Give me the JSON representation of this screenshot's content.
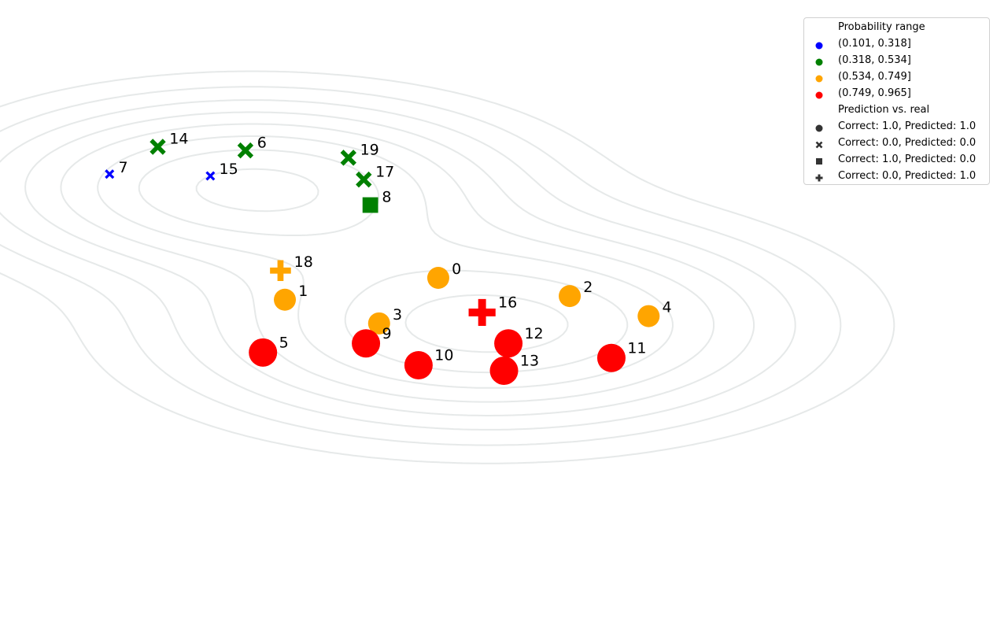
{
  "chart_data": {
    "type": "scatter",
    "title": "",
    "xlabel": "",
    "ylabel": "",
    "axes_visible": false,
    "xlim": [
      -2.0,
      2.6
    ],
    "ylim": [
      -1.6,
      1.6
    ],
    "background": "density contour lines (light gray)",
    "contour_color": "#e6e9e9",
    "points": [
      {
        "label": "0",
        "x": 0.0,
        "y": 0.16,
        "prob_range": "(0.534, 0.749]",
        "shape": "circle"
      },
      {
        "label": "1",
        "x": -0.7,
        "y": 0.04,
        "prob_range": "(0.534, 0.749]",
        "shape": "circle"
      },
      {
        "label": "2",
        "x": 0.6,
        "y": 0.06,
        "prob_range": "(0.534, 0.749]",
        "shape": "circle"
      },
      {
        "label": "3",
        "x": -0.27,
        "y": -0.09,
        "prob_range": "(0.534, 0.749]",
        "shape": "circle"
      },
      {
        "label": "4",
        "x": 0.96,
        "y": -0.05,
        "prob_range": "(0.534, 0.749]",
        "shape": "circle"
      },
      {
        "label": "5",
        "x": -0.8,
        "y": -0.25,
        "prob_range": "(0.749, 0.965]",
        "shape": "circle"
      },
      {
        "label": "6",
        "x": -0.88,
        "y": 0.86,
        "prob_range": "(0.318, 0.534]",
        "shape": "x"
      },
      {
        "label": "7",
        "x": -1.5,
        "y": 0.73,
        "prob_range": "(0.101, 0.318]",
        "shape": "x"
      },
      {
        "label": "8",
        "x": -0.31,
        "y": 0.56,
        "prob_range": "(0.318, 0.534]",
        "shape": "square"
      },
      {
        "label": "9",
        "x": -0.33,
        "y": -0.2,
        "prob_range": "(0.749, 0.965]",
        "shape": "circle"
      },
      {
        "label": "10",
        "x": -0.09,
        "y": -0.32,
        "prob_range": "(0.749, 0.965]",
        "shape": "circle"
      },
      {
        "label": "11",
        "x": 0.79,
        "y": -0.28,
        "prob_range": "(0.749, 0.965]",
        "shape": "circle"
      },
      {
        "label": "12",
        "x": 0.32,
        "y": -0.2,
        "prob_range": "(0.749, 0.965]",
        "shape": "circle"
      },
      {
        "label": "13",
        "x": 0.3,
        "y": -0.35,
        "prob_range": "(0.749, 0.965]",
        "shape": "circle"
      },
      {
        "label": "14",
        "x": -1.28,
        "y": 0.88,
        "prob_range": "(0.318, 0.534]",
        "shape": "x"
      },
      {
        "label": "15",
        "x": -1.04,
        "y": 0.72,
        "prob_range": "(0.101, 0.318]",
        "shape": "x"
      },
      {
        "label": "16",
        "x": 0.2,
        "y": -0.03,
        "prob_range": "(0.749, 0.965]",
        "shape": "plus"
      },
      {
        "label": "17",
        "x": -0.34,
        "y": 0.7,
        "prob_range": "(0.318, 0.534]",
        "shape": "x"
      },
      {
        "label": "18",
        "x": -0.72,
        "y": 0.2,
        "prob_range": "(0.534, 0.749]",
        "shape": "plus"
      },
      {
        "label": "19",
        "x": -0.41,
        "y": 0.82,
        "prob_range": "(0.318, 0.534]",
        "shape": "x"
      }
    ],
    "legend": {
      "placement": "upper-right",
      "color_title": "Probability range",
      "color_entries": [
        {
          "label": "(0.101, 0.318]",
          "color": "#0000ff"
        },
        {
          "label": "(0.318, 0.534]",
          "color": "#008000"
        },
        {
          "label": "(0.534, 0.749]",
          "color": "#ffa500"
        },
        {
          "label": "(0.749, 0.965]",
          "color": "#ff0000"
        }
      ],
      "shape_title": "Prediction vs. real",
      "shape_entries": [
        {
          "label": "Correct: 1.0, Predicted: 1.0",
          "shape": "circle"
        },
        {
          "label": "Correct: 0.0, Predicted: 0.0",
          "shape": "x"
        },
        {
          "label": "Correct: 1.0, Predicted: 0.0",
          "shape": "square"
        },
        {
          "label": "Correct: 0.0, Predicted: 1.0",
          "shape": "plus"
        }
      ]
    }
  }
}
